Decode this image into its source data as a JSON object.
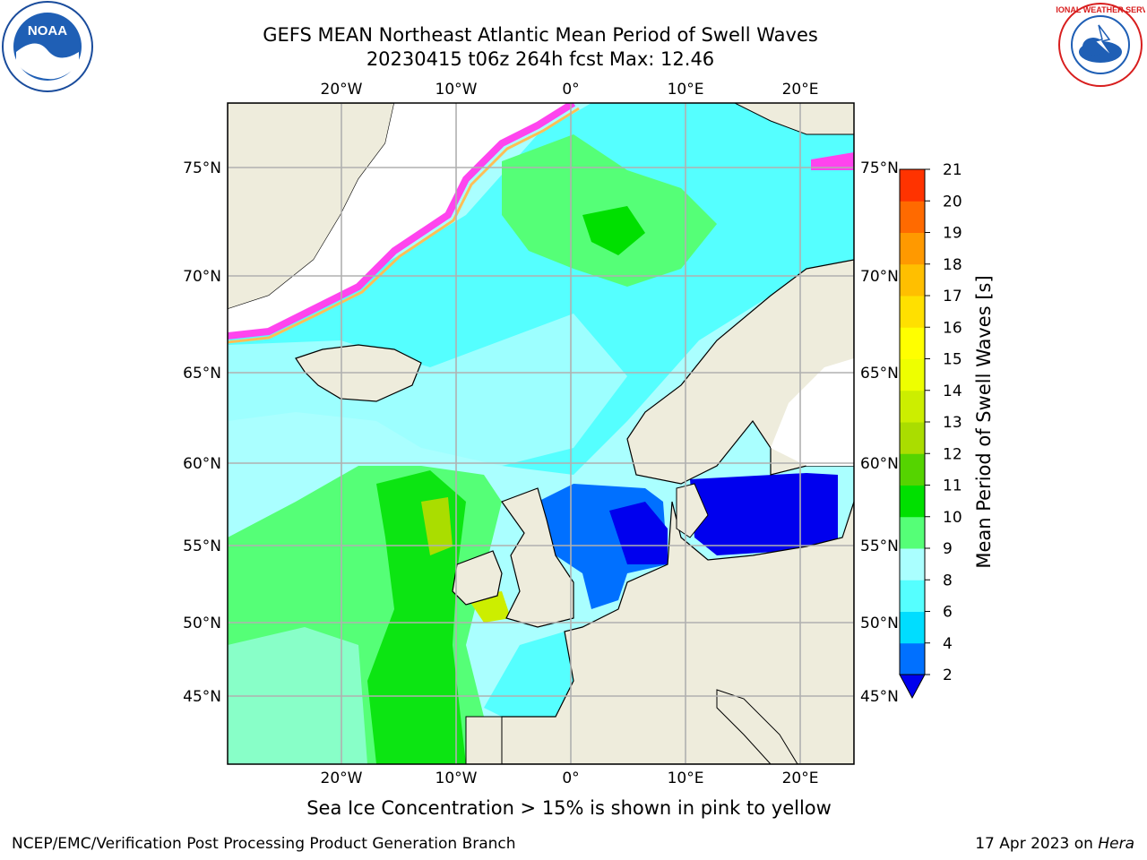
{
  "title_line1": "GEFS MEAN Northeast Atlantic Mean Period of Swell Waves",
  "title_line2": "20230415 t06z 264h fcst   Max: 12.46",
  "caption": "Sea Ice Concentration > 15% is shown in pink to yellow",
  "credit": "NCEP/EMC/Verification Post Processing Product Generation Branch",
  "date_prefix": "17 Apr 2023 on ",
  "date_machine": "Hera",
  "logos": {
    "left": "noaa-logo",
    "right": "nws-logo",
    "left_text": "NOAA",
    "right_text": "NATIONAL WEATHER SERVICE"
  },
  "map": {
    "lon_ticks": [
      "20°W",
      "10°W",
      "0°",
      "10°E",
      "20°E"
    ],
    "lat_ticks": [
      "75°N",
      "70°N",
      "65°N",
      "60°N",
      "55°N",
      "50°N",
      "45°N"
    ],
    "colors": {
      "land": "#eeecdc",
      "ice_free_void": "#ffffff",
      "grid": "#b0b0b0"
    }
  },
  "colorbar": {
    "label": "Mean Period of Swell Waves [s]",
    "ticks": [
      "2",
      "4",
      "6",
      "8",
      "9",
      "10",
      "11",
      "12",
      "13",
      "14",
      "15",
      "16",
      "17",
      "18",
      "19",
      "20",
      "21"
    ],
    "colors": [
      "#0070ff",
      "#00ddff",
      "#55ffff",
      "#aaffff",
      "#55ff77",
      "#00e000",
      "#55d400",
      "#aadd00",
      "#ccee00",
      "#eeff00",
      "#ffff00",
      "#ffe000",
      "#ffbf00",
      "#ff9900",
      "#ff6a00",
      "#ff3300",
      "#ff0000"
    ],
    "under_color": "#0000ee",
    "extend": "min"
  }
}
